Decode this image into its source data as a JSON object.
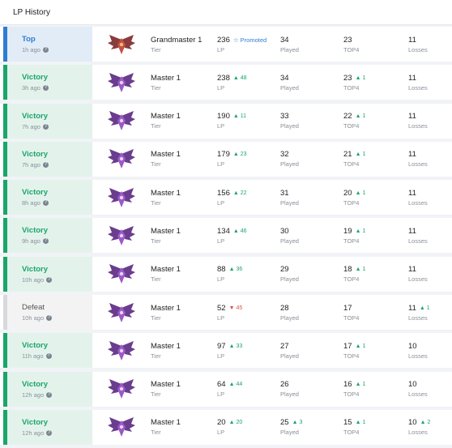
{
  "header": {
    "title": "LP History"
  },
  "labels": {
    "tier": "Tier",
    "lp": "LP",
    "played": "Played",
    "top4": "TOP4",
    "losses": "Losses"
  },
  "colors": {
    "victory": "#1aa56a",
    "top": "#2f7dd1",
    "defeat": "#d7d9dd",
    "up": "#1aa56a",
    "down": "#d9534f"
  },
  "rows": [
    {
      "kind": "top",
      "result": "Top",
      "time": "1h ago",
      "tier": "Grandmaster 1",
      "emblem": "grandmaster-emblem-icon",
      "lp": "236",
      "lp_change": "☆ Promoted",
      "lp_dir": "promo",
      "played": "34",
      "played_change": "",
      "top4": "23",
      "top4_change": "",
      "losses": "11",
      "losses_change": ""
    },
    {
      "kind": "victory",
      "result": "Victory",
      "time": "3h ago",
      "tier": "Master 1",
      "emblem": "master-emblem-icon",
      "lp": "238",
      "lp_change": "▲ 48",
      "lp_dir": "up",
      "played": "34",
      "played_change": "",
      "top4": "23",
      "top4_change": "▲ 1",
      "losses": "11",
      "losses_change": ""
    },
    {
      "kind": "victory",
      "result": "Victory",
      "time": "7h ago",
      "tier": "Master 1",
      "emblem": "master-emblem-icon",
      "lp": "190",
      "lp_change": "▲ 11",
      "lp_dir": "up",
      "played": "33",
      "played_change": "",
      "top4": "22",
      "top4_change": "▲ 1",
      "losses": "11",
      "losses_change": ""
    },
    {
      "kind": "victory",
      "result": "Victory",
      "time": "7h ago",
      "tier": "Master 1",
      "emblem": "master-emblem-icon",
      "lp": "179",
      "lp_change": "▲ 23",
      "lp_dir": "up",
      "played": "32",
      "played_change": "",
      "top4": "21",
      "top4_change": "▲ 1",
      "losses": "11",
      "losses_change": ""
    },
    {
      "kind": "victory",
      "result": "Victory",
      "time": "8h ago",
      "tier": "Master 1",
      "emblem": "master-emblem-icon",
      "lp": "156",
      "lp_change": "▲ 22",
      "lp_dir": "up",
      "played": "31",
      "played_change": "",
      "top4": "20",
      "top4_change": "▲ 1",
      "losses": "11",
      "losses_change": ""
    },
    {
      "kind": "victory",
      "result": "Victory",
      "time": "9h ago",
      "tier": "Master 1",
      "emblem": "master-emblem-icon",
      "lp": "134",
      "lp_change": "▲ 46",
      "lp_dir": "up",
      "played": "30",
      "played_change": "",
      "top4": "19",
      "top4_change": "▲ 1",
      "losses": "11",
      "losses_change": ""
    },
    {
      "kind": "victory",
      "result": "Victory",
      "time": "10h ago",
      "tier": "Master 1",
      "emblem": "master-emblem-icon",
      "lp": "88",
      "lp_change": "▲ 36",
      "lp_dir": "up",
      "played": "29",
      "played_change": "",
      "top4": "18",
      "top4_change": "▲ 1",
      "losses": "11",
      "losses_change": ""
    },
    {
      "kind": "defeat",
      "result": "Defeat",
      "time": "10h ago",
      "tier": "Master 1",
      "emblem": "master-emblem-icon",
      "lp": "52",
      "lp_change": "▼ 45",
      "lp_dir": "down",
      "played": "28",
      "played_change": "",
      "top4": "17",
      "top4_change": "",
      "losses": "11",
      "losses_change": "▲ 1"
    },
    {
      "kind": "victory",
      "result": "Victory",
      "time": "11h ago",
      "tier": "Master 1",
      "emblem": "master-emblem-icon",
      "lp": "97",
      "lp_change": "▲ 33",
      "lp_dir": "up",
      "played": "27",
      "played_change": "",
      "top4": "17",
      "top4_change": "▲ 1",
      "losses": "10",
      "losses_change": ""
    },
    {
      "kind": "victory",
      "result": "Victory",
      "time": "12h ago",
      "tier": "Master 1",
      "emblem": "master-emblem-icon",
      "lp": "64",
      "lp_change": "▲ 44",
      "lp_dir": "up",
      "played": "26",
      "played_change": "",
      "top4": "16",
      "top4_change": "▲ 1",
      "losses": "10",
      "losses_change": ""
    },
    {
      "kind": "victory",
      "result": "Victory",
      "time": "12h ago",
      "tier": "Master 1",
      "emblem": "master-emblem-icon",
      "lp": "20",
      "lp_change": "▲ 20",
      "lp_dir": "up",
      "played": "25",
      "played_change": "▲ 3",
      "top4": "15",
      "top4_change": "▲ 1",
      "losses": "10",
      "losses_change": "▲ 2"
    }
  ]
}
